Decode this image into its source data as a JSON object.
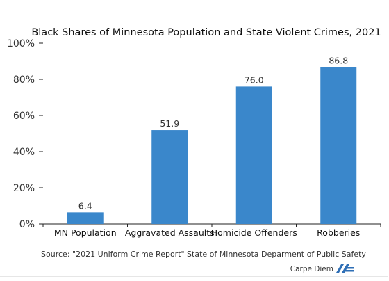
{
  "chart_data": {
    "type": "bar",
    "title": "Black Shares of Minnesota Population and State Violent Crimes, 2021",
    "categories": [
      "MN Population",
      "Aggravated Assaults",
      "Homicide Offenders",
      "Robberies"
    ],
    "values": [
      6.4,
      51.9,
      76.0,
      86.8
    ],
    "data_labels": [
      "6.4",
      "51.9",
      "76.0",
      "86.8"
    ],
    "ylim": [
      0,
      100
    ],
    "yticks": [
      0,
      20,
      40,
      60,
      80,
      100
    ],
    "ytick_labels": [
      "0%",
      "20%",
      "40%",
      "60%",
      "80%",
      "100%"
    ],
    "xlabel": "",
    "ylabel": "",
    "grid": false,
    "bar_color": "#3a87cb",
    "source": "Source: \"2021 Uniform Crime Report\" State of Minnesota Deparment of Public Safety"
  },
  "branding": {
    "text": "Carpe Diem",
    "logo_icon": "aei-logo-icon",
    "logo_color": "#2f6fb6"
  }
}
